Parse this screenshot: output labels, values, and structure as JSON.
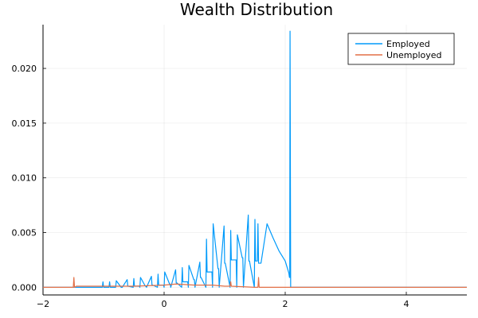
{
  "chart_data": {
    "type": "line",
    "title": "Wealth Distribution",
    "xlabel": "",
    "ylabel": "",
    "xlim": [
      -2,
      5
    ],
    "ylim": [
      -0.0007,
      0.024
    ],
    "xticks": [
      -2,
      0,
      2,
      4
    ],
    "xtick_labels": [
      "−2",
      "0",
      "2",
      "4"
    ],
    "yticks": [
      0,
      0.005,
      0.01,
      0.015,
      0.02
    ],
    "ytick_labels": [
      "0.000",
      "0.005",
      "0.010",
      "0.015",
      "0.020"
    ],
    "grid": true,
    "legend_position": "top-right",
    "series": [
      {
        "name": "Employed",
        "color": "#009AFA",
        "x": [
          -2.0,
          -1.5,
          -1.02,
          -1.01,
          -1.0,
          -0.99,
          -0.91,
          -0.9,
          -0.89,
          -0.81,
          -0.8,
          -0.79,
          -0.71,
          -0.7,
          -0.69,
          -0.61,
          -0.6,
          -0.59,
          -0.51,
          -0.5,
          -0.49,
          -0.41,
          -0.4,
          -0.39,
          -0.31,
          -0.3,
          -0.29,
          -0.21,
          -0.2,
          -0.19,
          -0.11,
          -0.1,
          -0.09,
          -0.01,
          0.0,
          0.01,
          0.09,
          0.1,
          0.11,
          0.19,
          0.2,
          0.21,
          0.29,
          0.3,
          0.31,
          0.39,
          0.4,
          0.41,
          0.49,
          0.5,
          0.51,
          0.59,
          0.6,
          0.61,
          0.69,
          0.7,
          0.71,
          0.79,
          0.8,
          0.81,
          0.89,
          0.9,
          0.91,
          0.99,
          1.0,
          1.01,
          1.09,
          1.1,
          1.11,
          1.19,
          1.2,
          1.21,
          1.29,
          1.3,
          1.31,
          1.39,
          1.4,
          1.41,
          1.49,
          1.5,
          1.51,
          1.54,
          1.55,
          1.56,
          1.6,
          1.7,
          1.8,
          1.9,
          2.0,
          2.06,
          2.07,
          2.075,
          2.08,
          2.09,
          3.0,
          4.0,
          5.0
        ],
        "y": [
          0.0,
          0.0,
          0.0,
          0.0005,
          0.0,
          0.0,
          0.0,
          0.0005,
          0.0,
          0.0,
          0.0,
          0.0006,
          0.0,
          0.0,
          0.0,
          0.0007,
          0.0001,
          0.0001,
          0.0,
          0.0008,
          0.0001,
          0.0001,
          0.0,
          0.0009,
          0.0001,
          0.0001,
          0.0,
          0.001,
          0.0002,
          0.0002,
          0.0,
          0.0012,
          0.0002,
          0.0002,
          0.0,
          0.0014,
          0.0003,
          0.0003,
          0.0,
          0.0016,
          0.0004,
          0.0004,
          0.0,
          0.0018,
          0.0005,
          0.0005,
          0.0,
          0.002,
          0.0007,
          0.0007,
          0.0,
          0.0023,
          0.0009,
          0.0009,
          0.0,
          0.0044,
          0.0014,
          0.0014,
          0.0,
          0.0058,
          0.0017,
          0.0017,
          0.0,
          0.0056,
          0.0022,
          0.0022,
          0.0,
          0.0052,
          0.0025,
          0.0025,
          0.0,
          0.0048,
          0.0027,
          0.0027,
          0.0,
          0.0066,
          0.0024,
          0.0024,
          0.0,
          0.0062,
          0.0024,
          0.0024,
          0.0058,
          0.0022,
          0.0022,
          0.0058,
          0.0045,
          0.0033,
          0.0024,
          0.0013,
          0.0009,
          0.0009,
          0.0234,
          0.0,
          0.0,
          0.0,
          0.0
        ]
      },
      {
        "name": "Unemployed",
        "color": "#E26F46",
        "x": [
          -2.0,
          -1.5,
          -1.49,
          -1.48,
          -1.45,
          -1.0,
          -0.5,
          0.0,
          0.2,
          0.5,
          0.6,
          0.8,
          1.0,
          1.09,
          1.1,
          1.11,
          1.5,
          1.55,
          1.56,
          1.57,
          1.6,
          2.0,
          3.0,
          4.0,
          5.0
        ],
        "y": [
          0.0,
          0.0,
          0.0009,
          0.0,
          0.0001,
          0.0001,
          0.0001,
          0.0002,
          0.0003,
          0.0002,
          0.0002,
          0.0002,
          0.0001,
          0.0001,
          0.0005,
          0.0001,
          0.0,
          0.0,
          0.0009,
          0.0,
          0.0,
          0.0,
          0.0,
          0.0,
          0.0
        ]
      }
    ]
  }
}
